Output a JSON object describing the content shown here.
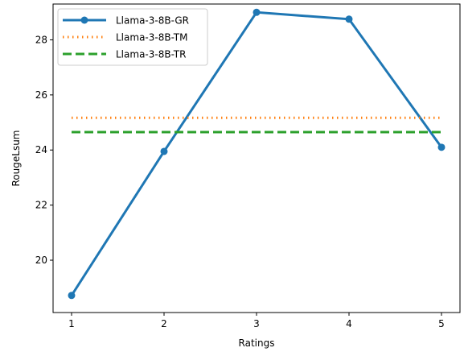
{
  "chart_data": {
    "type": "line",
    "title": "",
    "xlabel": "Ratings",
    "ylabel": "RougeLsum",
    "x": [
      1,
      2,
      3,
      4,
      5
    ],
    "xlim": [
      0.8,
      5.2
    ],
    "ylim": [
      18.1,
      29.3
    ],
    "xticks": [
      1,
      2,
      3,
      4,
      5
    ],
    "yticks": [
      20,
      22,
      24,
      26,
      28
    ],
    "grid": false,
    "legend_position": "top-left",
    "series": [
      {
        "name": "Llama-3-8B-GR",
        "values": [
          18.72,
          23.95,
          29.0,
          28.75,
          24.1
        ],
        "color": "#1f77b4",
        "style": "solid",
        "marker": "circle"
      },
      {
        "name": "Llama-3-8B-TM",
        "values": [
          25.17,
          25.17,
          25.17,
          25.17,
          25.17
        ],
        "color": "#ff7f0e",
        "style": "dotted",
        "marker": "none"
      },
      {
        "name": "Llama-3-8B-TR",
        "values": [
          24.65,
          24.65,
          24.65,
          24.65,
          24.65
        ],
        "color": "#2ca02c",
        "style": "dashed",
        "marker": "none"
      }
    ]
  }
}
